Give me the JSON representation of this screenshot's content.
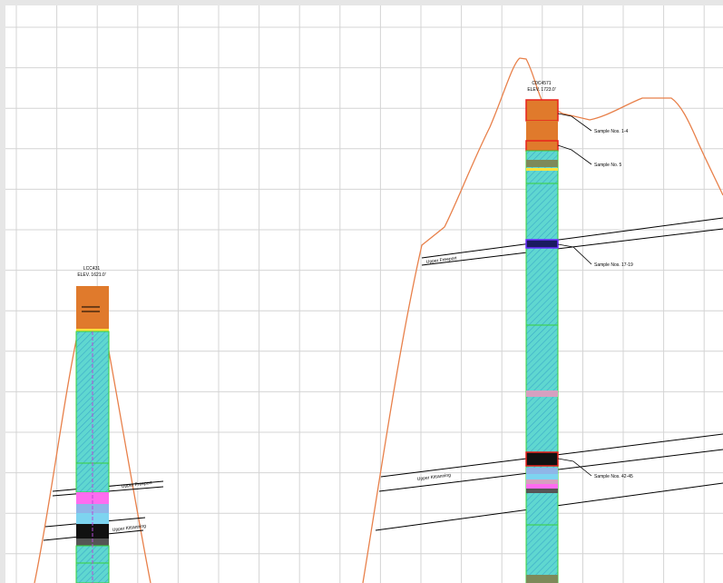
{
  "boreholes": [
    {
      "id": "LCC431",
      "elevation": "ELEV. 1621.0'"
    },
    {
      "id": "C0C4571",
      "elevation": "ELEV. 1723.0'"
    }
  ],
  "horizons": [
    {
      "label": "Upper Freeport"
    },
    {
      "label": "Upper Kittanning"
    },
    {
      "label": "Upper Freeport"
    },
    {
      "label": "Upper Kittanning"
    }
  ],
  "samples": [
    {
      "label": "Sample Nos. 1-4"
    },
    {
      "label": "Sample No. 5"
    },
    {
      "label": "Sample Nos. 17-19"
    },
    {
      "label": "Sample Nos. 42-45"
    }
  ]
}
